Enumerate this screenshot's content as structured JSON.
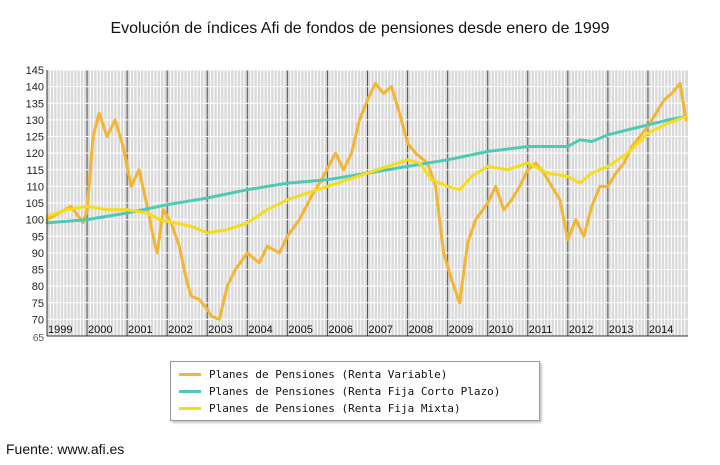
{
  "title": "Evolución de índices Afi de fondos de pensiones desde enero de 1999",
  "source": "Fuente: www.afi.es",
  "chart_data": {
    "type": "line",
    "x_type": "year",
    "xlim": [
      1999,
      2015
    ],
    "ylim": [
      65,
      145
    ],
    "y_ticks": [
      70,
      75,
      80,
      85,
      90,
      95,
      100,
      105,
      110,
      115,
      120,
      125,
      130,
      135,
      140,
      145
    ],
    "y_bottom_label": "65",
    "x_tick_labels": [
      "1999",
      "2000",
      "2001",
      "2002",
      "2003",
      "2004",
      "2005",
      "2006",
      "2007",
      "2008",
      "2009",
      "2010",
      "2011",
      "2012",
      "2013",
      "2014"
    ],
    "grid": true,
    "background": "#d9d9d9",
    "legend_position": "bottom",
    "series": [
      {
        "name": "Planes de Pensiones (Renta Variable)",
        "color": "#f2b632",
        "x": [
          1999.0,
          1999.3,
          1999.6,
          1999.9,
          2000.0,
          2000.15,
          2000.3,
          2000.5,
          2000.7,
          2000.9,
          2001.1,
          2001.3,
          2001.5,
          2001.7,
          2001.75,
          2001.9,
          2002.1,
          2002.3,
          2002.5,
          2002.6,
          2002.8,
          2003.0,
          2003.1,
          2003.3,
          2003.5,
          2003.7,
          2004.0,
          2004.3,
          2004.5,
          2004.8,
          2005.0,
          2005.3,
          2005.6,
          2005.9,
          2006.2,
          2006.4,
          2006.6,
          2006.8,
          2007.0,
          2007.2,
          2007.4,
          2007.6,
          2007.8,
          2008.0,
          2008.2,
          2008.5,
          2008.7,
          2008.9,
          2009.1,
          2009.3,
          2009.5,
          2009.7,
          2010.0,
          2010.2,
          2010.4,
          2010.6,
          2010.8,
          2011.0,
          2011.2,
          2011.4,
          2011.6,
          2011.8,
          2012.0,
          2012.2,
          2012.4,
          2012.6,
          2012.8,
          2013.0,
          2013.2,
          2013.4,
          2013.6,
          2013.8,
          2014.0,
          2014.2,
          2014.4,
          2014.6,
          2014.8,
          2014.95
        ],
        "y": [
          100,
          102,
          104,
          99,
          103,
          125,
          132,
          125,
          130,
          122,
          110,
          115,
          104,
          92,
          90,
          103,
          99,
          92,
          81,
          77,
          76,
          73,
          71,
          70,
          80,
          85,
          90,
          87,
          92,
          90,
          95,
          100,
          107,
          113,
          120,
          115,
          120,
          130,
          136,
          141,
          138,
          140,
          132,
          123,
          120,
          117,
          110,
          90,
          82,
          75,
          93,
          100,
          105,
          110,
          103,
          106,
          110,
          115,
          117,
          114,
          110,
          106,
          94,
          100,
          95,
          104,
          110,
          110,
          114,
          117,
          122,
          125,
          128,
          132,
          136,
          138,
          141,
          130
        ]
      },
      {
        "name": "Planes de Pensiones (Renta Fija Corto Plazo)",
        "color": "#4ec9b7",
        "x": [
          1999.0,
          2000.0,
          2001.0,
          2002.0,
          2003.0,
          2004.0,
          2005.0,
          2006.0,
          2007.0,
          2008.0,
          2009.0,
          2010.0,
          2011.0,
          2012.0,
          2012.3,
          2012.6,
          2012.9,
          2013.0,
          2013.5,
          2014.0,
          2014.5,
          2014.95
        ],
        "y": [
          99,
          100,
          102,
          104.5,
          106.5,
          109,
          111,
          112,
          114,
          116,
          118,
          120.5,
          122,
          122,
          124,
          123.5,
          125,
          125.5,
          127,
          128.5,
          130,
          131
        ]
      },
      {
        "name": "Planes de Pensiones (Renta Fija Mixta)",
        "color": "#f5dd1a",
        "x": [
          1999.0,
          1999.5,
          2000.0,
          2000.5,
          2001.0,
          2001.5,
          2001.8,
          2002.2,
          2002.6,
          2003.0,
          2003.5,
          2004.0,
          2004.5,
          2005.0,
          2005.5,
          2006.0,
          2006.5,
          2007.0,
          2007.5,
          2008.0,
          2008.3,
          2008.6,
          2009.0,
          2009.3,
          2009.6,
          2010.0,
          2010.5,
          2011.0,
          2011.5,
          2012.0,
          2012.3,
          2012.6,
          2013.0,
          2013.5,
          2014.0,
          2014.5,
          2014.95
        ],
        "y": [
          101,
          103,
          104,
          103,
          103,
          102,
          100,
          99,
          98,
          96,
          97,
          99,
          103,
          106,
          108,
          110,
          112,
          114,
          116,
          118,
          117,
          112,
          110,
          109,
          113,
          116,
          115,
          117,
          114,
          113,
          111,
          114,
          116,
          120,
          126,
          129,
          131
        ]
      }
    ]
  }
}
